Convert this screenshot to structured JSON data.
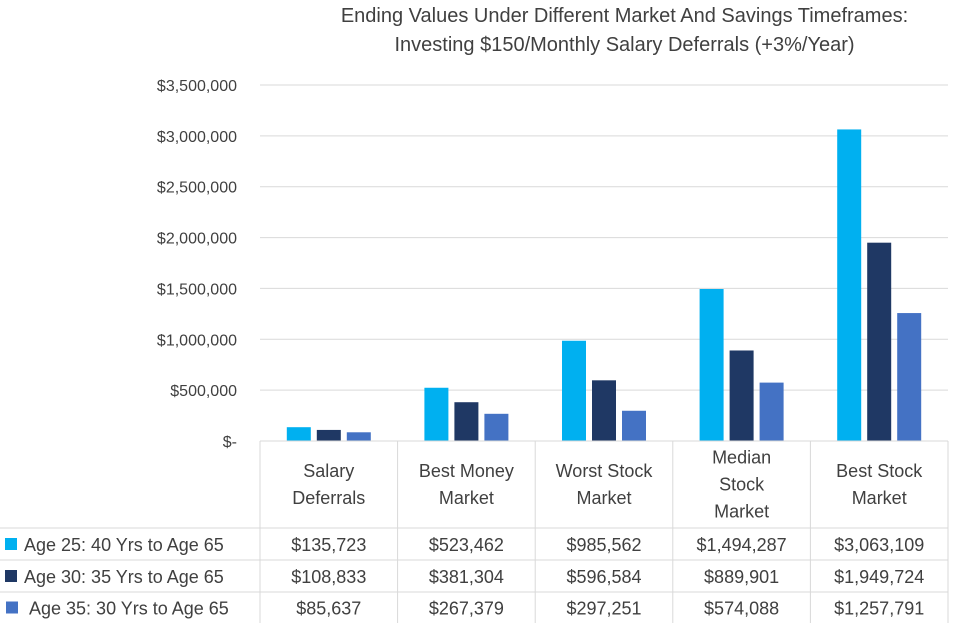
{
  "chart_data": {
    "type": "bar",
    "title_lines": [
      "Ending Values Under Different Market And Savings Timeframes:",
      "Investing $150/Monthly Salary Deferrals (+3%/Year)"
    ],
    "categories": [
      [
        "Salary",
        "Deferrals"
      ],
      [
        "Best Money",
        "Market"
      ],
      [
        "Worst Stock",
        "Market"
      ],
      [
        "Median",
        "Stock",
        "Market"
      ],
      [
        "Best Stock",
        "Market"
      ]
    ],
    "ylim": [
      0,
      3500000
    ],
    "yticks": [
      0,
      500000,
      1000000,
      1500000,
      2000000,
      2500000,
      3000000,
      3500000
    ],
    "ytick_labels": [
      "$-",
      "$500,000",
      "$1,000,000",
      "$1,500,000",
      "$2,000,000",
      "$2,500,000",
      "$3,000,000",
      "$3,500,000"
    ],
    "grid": true,
    "legend": "data-table-left",
    "series": [
      {
        "name": "Age 25: 40 Yrs to Age 65",
        "color": "#00B0F0",
        "values": [
          135723,
          523462,
          985562,
          1494287,
          3063109
        ],
        "labels": [
          "$135,723",
          "$523,462",
          "$985,562",
          "$1,494,287",
          "$3,063,109"
        ]
      },
      {
        "name": "Age 30: 35 Yrs to Age 65",
        "color": "#1F3864",
        "values": [
          108833,
          381304,
          596584,
          889901,
          1949724
        ],
        "labels": [
          "$108,833",
          "$381,304",
          "$596,584",
          "$889,901",
          "$1,949,724"
        ]
      },
      {
        "name": "Age 35: 30 Yrs to Age 65",
        "color": "#4472C4",
        "values": [
          85637,
          267379,
          297251,
          574088,
          1257791
        ],
        "labels": [
          "$85,637",
          "$267,379",
          "$297,251",
          "$574,088",
          "$1,257,791"
        ]
      }
    ]
  }
}
